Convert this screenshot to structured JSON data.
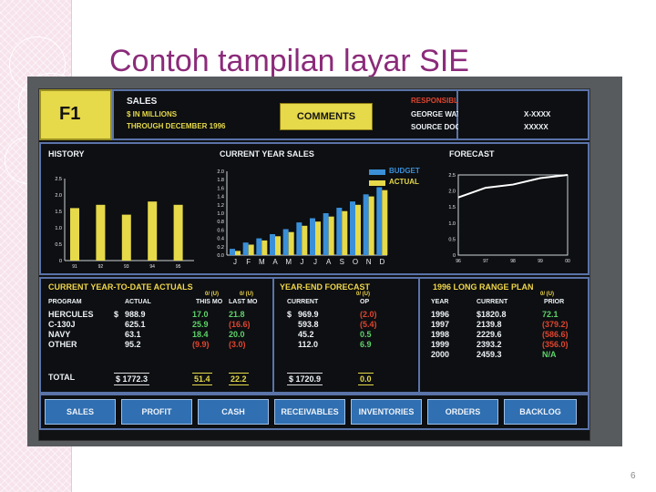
{
  "slide": {
    "title": "Contoh tampilan layar SIE",
    "page_number": "6"
  },
  "header": {
    "page_id": "F1",
    "sales_lines": [
      "SALES",
      "$ IN MILLIONS",
      "THROUGH DECEMBER 1996"
    ],
    "comments_label": "COMMENTS",
    "responsible_label": "RESPONSIBLE",
    "responsible_name": "GEORGE WATSON",
    "responsible_ext": "X-XXXX",
    "source_label": "SOURCE DOCUMENT",
    "source_value": "XXXXX"
  },
  "sections": {
    "history": "HISTORY",
    "current_year_sales": "CURRENT YEAR SALES",
    "forecast": "FORECAST",
    "ytd_actuals": "CURRENT YEAR-TO-DATE ACTUALS",
    "year_end_forecast": "YEAR-END FORECAST",
    "long_range_plan": "1996 LONG RANGE PLAN"
  },
  "legend": {
    "budget": "BUDGET",
    "actual": "ACTUAL"
  },
  "colors": {
    "yellow": "#e6d94a",
    "blue": "#3a8fd8",
    "green": "#5fd36a",
    "red": "#e0452f",
    "nav": "#2f6fb2"
  },
  "chart_data": [
    {
      "type": "bar",
      "title": "HISTORY",
      "categories": [
        "91",
        "92",
        "93",
        "94",
        "95"
      ],
      "values": [
        1.6,
        1.7,
        1.4,
        1.8,
        1.7
      ],
      "yticks": [
        "2.5",
        "2.0",
        "1.5",
        "1.0",
        "0.5",
        "0"
      ],
      "ylim": [
        0,
        2.5
      ]
    },
    {
      "type": "bar",
      "title": "CURRENT YEAR SALES",
      "categories": [
        "J",
        "F",
        "M",
        "A",
        "M",
        "J",
        "J",
        "A",
        "S",
        "O",
        "N",
        "D"
      ],
      "series": [
        {
          "name": "BUDGET",
          "values": [
            0.15,
            0.3,
            0.4,
            0.5,
            0.62,
            0.78,
            0.88,
            1.0,
            1.13,
            1.28,
            1.45,
            1.62
          ]
        },
        {
          "name": "ACTUAL",
          "values": [
            0.1,
            0.25,
            0.35,
            0.45,
            0.55,
            0.7,
            0.8,
            0.92,
            1.05,
            1.2,
            1.4,
            1.55
          ]
        }
      ],
      "yticks": [
        "2.0",
        "1.8",
        "1.6",
        "1.4",
        "1.2",
        "1.0",
        "0.8",
        "0.6",
        "0.4",
        "0.2",
        "0.0"
      ],
      "ylim": [
        0,
        2.0
      ]
    },
    {
      "type": "line",
      "title": "FORECAST",
      "x": [
        "96",
        "97",
        "98",
        "99",
        "00"
      ],
      "values": [
        1.8,
        2.1,
        2.2,
        2.4,
        2.5
      ],
      "yticks": [
        "2.5",
        "2.0",
        "1.5",
        "1.0",
        "0.5",
        "0"
      ],
      "ylim": [
        0,
        2.5
      ]
    },
    {
      "type": "table",
      "title": "CURRENT YEAR-TO-DATE ACTUALS",
      "variance_label": "0/ (U)",
      "columns": [
        "PROGRAM",
        "ACTUAL",
        "THIS MO",
        "LAST MO"
      ],
      "rows": [
        {
          "program": "HERCULES",
          "dollar": "$",
          "actual": "988.9",
          "this_mo": "17.0",
          "last_mo": "21.8"
        },
        {
          "program": "C-130J",
          "dollar": "",
          "actual": "625.1",
          "this_mo": "25.9",
          "last_mo": "(16.6)"
        },
        {
          "program": "NAVY",
          "dollar": "",
          "actual": "63.1",
          "this_mo": "18.4",
          "last_mo": "20.0"
        },
        {
          "program": "OTHER",
          "dollar": "",
          "actual": "95.2",
          "this_mo": "(9.9)",
          "last_mo": "(3.0)"
        }
      ],
      "total": {
        "program": "TOTAL",
        "actual": "$ 1772.3",
        "this_mo": "51.4",
        "last_mo": "22.2"
      }
    },
    {
      "type": "table",
      "title": "YEAR-END FORECAST",
      "variance_label": "0/ (U)",
      "columns": [
        "CURRENT",
        "OP"
      ],
      "rows": [
        {
          "dollar": "$",
          "current": "969.9",
          "op": "(2.0)"
        },
        {
          "dollar": "",
          "current": "593.8",
          "op": "(5.4)"
        },
        {
          "dollar": "",
          "current": "45.2",
          "op": "0.5"
        },
        {
          "dollar": "",
          "current": "112.0",
          "op": "6.9"
        }
      ],
      "total": {
        "current": "$ 1720.9",
        "op": "0.0"
      }
    },
    {
      "type": "table",
      "title": "1996 LONG RANGE PLAN",
      "variance_label": "0/ (U)",
      "columns": [
        "YEAR",
        "CURRENT",
        "PRIOR"
      ],
      "rows": [
        {
          "year": "1996",
          "current": "$1820.8",
          "prior": "72.1"
        },
        {
          "year": "1997",
          "current": "2139.8",
          "prior": "(379.2)"
        },
        {
          "year": "1998",
          "current": "2229.6",
          "prior": "(586.6)"
        },
        {
          "year": "1999",
          "current": "2393.2",
          "prior": "(356.0)"
        },
        {
          "year": "2000",
          "current": "2459.3",
          "prior": "N/A"
        }
      ]
    }
  ],
  "nav": [
    "SALES",
    "PROFIT",
    "CASH",
    "RECEIVABLES",
    "INVENTORIES",
    "ORDERS",
    "BACKLOG"
  ]
}
